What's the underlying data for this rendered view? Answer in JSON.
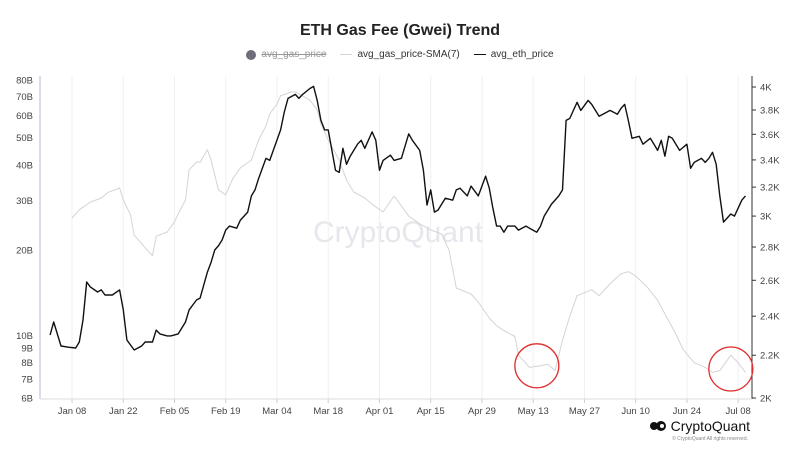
{
  "chart_data": {
    "type": "line",
    "title": "ETH Gas Fee (Gwei) Trend",
    "legend": [
      {
        "name": "avg_gas_price",
        "hidden": true,
        "color": "#6e6e7a"
      },
      {
        "name": "avg_gas_price-SMA(7)",
        "color": "#d4d4d8"
      },
      {
        "name": "avg_eth_price",
        "color": "#111111"
      }
    ],
    "legend_position": "top-center",
    "x_start_date": "2024-01-01",
    "x_unit": "days since start",
    "x_range": [
      0,
      192
    ],
    "x_ticks": [
      {
        "day": 7,
        "label": "Jan 08"
      },
      {
        "day": 21,
        "label": "Jan 22"
      },
      {
        "day": 35,
        "label": "Feb 05"
      },
      {
        "day": 49,
        "label": "Feb 19"
      },
      {
        "day": 63,
        "label": "Mar 04"
      },
      {
        "day": 77,
        "label": "Mar 18"
      },
      {
        "day": 91,
        "label": "Apr 01"
      },
      {
        "day": 105,
        "label": "Apr 15"
      },
      {
        "day": 119,
        "label": "Apr 29"
      },
      {
        "day": 133,
        "label": "May 13"
      },
      {
        "day": 147,
        "label": "May 27"
      },
      {
        "day": 161,
        "label": "Jun 10"
      },
      {
        "day": 175,
        "label": "Jun 24"
      },
      {
        "day": 189,
        "label": "Jul 08"
      }
    ],
    "left_axis": {
      "scale": "log",
      "range": [
        6,
        80
      ],
      "unit": "B",
      "ticks": [
        {
          "v": 80,
          "label": "80B"
        },
        {
          "v": 70,
          "label": "70B"
        },
        {
          "v": 60,
          "label": "60B"
        },
        {
          "v": 50,
          "label": "50B"
        },
        {
          "v": 40,
          "label": "40B"
        },
        {
          "v": 30,
          "label": "30B"
        },
        {
          "v": 20,
          "label": "20B"
        },
        {
          "v": 10,
          "label": "10B"
        },
        {
          "v": 9,
          "label": "9B"
        },
        {
          "v": 8,
          "label": "8B"
        },
        {
          "v": 7,
          "label": "7B"
        },
        {
          "v": 6,
          "label": "6B"
        }
      ]
    },
    "right_axis": {
      "scale": "log",
      "range": [
        2000,
        4000
      ],
      "ticks": [
        {
          "v": 4000,
          "label": "4K"
        },
        {
          "v": 3800,
          "label": "3.8K"
        },
        {
          "v": 3600,
          "label": "3.6K"
        },
        {
          "v": 3400,
          "label": "3.4K"
        },
        {
          "v": 3200,
          "label": "3.2K"
        },
        {
          "v": 3000,
          "label": "3K"
        },
        {
          "v": 2800,
          "label": "2.8K"
        },
        {
          "v": 2600,
          "label": "2.6K"
        },
        {
          "v": 2400,
          "label": "2.4K"
        },
        {
          "v": 2200,
          "label": "2.2K"
        },
        {
          "v": 2000,
          "label": "2K"
        }
      ]
    },
    "series": [
      {
        "name": "avg_gas_price-SMA(7)",
        "axis": "left",
        "points": [
          [
            7,
            26.0
          ],
          [
            9,
            27.8
          ],
          [
            12,
            29.6
          ],
          [
            15,
            30.6
          ],
          [
            17,
            32.1
          ],
          [
            20,
            33.2
          ],
          [
            21,
            30.1
          ],
          [
            23,
            26.6
          ],
          [
            24,
            22.6
          ],
          [
            27,
            20.4
          ],
          [
            29,
            19.1
          ],
          [
            30,
            22.4
          ],
          [
            33,
            23.2
          ],
          [
            35,
            25.2
          ],
          [
            36,
            26.9
          ],
          [
            38,
            30.1
          ],
          [
            39,
            38.5
          ],
          [
            41,
            41.0
          ],
          [
            42,
            41.0
          ],
          [
            44,
            45.3
          ],
          [
            45,
            41.7
          ],
          [
            47,
            32.7
          ],
          [
            49,
            31.4
          ],
          [
            51,
            36.0
          ],
          [
            53,
            39.1
          ],
          [
            56,
            41.7
          ],
          [
            58,
            49.1
          ],
          [
            60,
            55.0
          ],
          [
            61,
            60.6
          ],
          [
            63,
            65.8
          ],
          [
            64,
            70.3
          ],
          [
            67,
            72.6
          ],
          [
            68,
            72.6
          ],
          [
            70,
            70.3
          ],
          [
            72,
            67.9
          ],
          [
            74,
            62.7
          ],
          [
            75,
            56.0
          ],
          [
            77,
            49.1
          ],
          [
            80,
            41.7
          ],
          [
            82,
            35.4
          ],
          [
            84,
            32.1
          ],
          [
            87,
            30.6
          ],
          [
            89,
            29.1
          ],
          [
            92,
            27.3
          ],
          [
            95,
            31.1
          ],
          [
            97,
            28.7
          ],
          [
            99,
            26.4
          ],
          [
            102,
            24.8
          ],
          [
            105,
            23.6
          ],
          [
            108,
            22.8
          ],
          [
            110,
            20.0
          ],
          [
            112,
            14.7
          ],
          [
            116,
            14.0
          ],
          [
            118,
            13.1
          ],
          [
            121,
            11.5
          ],
          [
            123,
            10.8
          ],
          [
            125,
            10.4
          ],
          [
            128,
            9.9
          ],
          [
            129,
            8.5
          ],
          [
            132,
            7.7
          ],
          [
            135,
            7.8
          ],
          [
            137,
            7.9
          ],
          [
            139,
            7.5
          ],
          [
            141,
            9.6
          ],
          [
            143,
            11.7
          ],
          [
            145,
            13.8
          ],
          [
            149,
            14.5
          ],
          [
            151,
            13.8
          ],
          [
            154,
            15.2
          ],
          [
            157,
            16.5
          ],
          [
            159,
            16.8
          ],
          [
            161,
            16.2
          ],
          [
            164,
            14.9
          ],
          [
            167,
            13.3
          ],
          [
            169,
            11.9
          ],
          [
            172,
            10.1
          ],
          [
            174,
            8.9
          ],
          [
            177,
            8.0
          ],
          [
            180,
            7.7
          ],
          [
            182,
            7.4
          ],
          [
            184,
            7.5
          ],
          [
            187,
            8.5
          ],
          [
            189,
            8.0
          ],
          [
            191,
            7.4
          ]
        ]
      },
      {
        "name": "avg_eth_price",
        "axis": "right",
        "points": [
          [
            1,
            2302
          ],
          [
            2,
            2369
          ],
          [
            4,
            2246
          ],
          [
            6,
            2240
          ],
          [
            8,
            2236
          ],
          [
            9,
            2266
          ],
          [
            10,
            2380
          ],
          [
            11,
            2590
          ],
          [
            12,
            2562
          ],
          [
            14,
            2533
          ],
          [
            15,
            2545
          ],
          [
            16,
            2516
          ],
          [
            18,
            2516
          ],
          [
            20,
            2545
          ],
          [
            21,
            2434
          ],
          [
            22,
            2276
          ],
          [
            24,
            2226
          ],
          [
            26,
            2246
          ],
          [
            27,
            2266
          ],
          [
            29,
            2266
          ],
          [
            30,
            2327
          ],
          [
            31,
            2307
          ],
          [
            33,
            2297
          ],
          [
            34,
            2297
          ],
          [
            36,
            2307
          ],
          [
            38,
            2369
          ],
          [
            39,
            2434
          ],
          [
            41,
            2488
          ],
          [
            42,
            2499
          ],
          [
            44,
            2648
          ],
          [
            45,
            2707
          ],
          [
            46,
            2782
          ],
          [
            47,
            2807
          ],
          [
            48,
            2844
          ],
          [
            49,
            2908
          ],
          [
            50,
            2934
          ],
          [
            52,
            2920
          ],
          [
            53,
            2973
          ],
          [
            55,
            3027
          ],
          [
            56,
            3138
          ],
          [
            57,
            3180
          ],
          [
            58,
            3264
          ],
          [
            60,
            3412
          ],
          [
            61,
            3396
          ],
          [
            62,
            3473
          ],
          [
            64,
            3635
          ],
          [
            65,
            3783
          ],
          [
            66,
            3900
          ],
          [
            68,
            3935
          ],
          [
            69,
            3900
          ],
          [
            70,
            3935
          ],
          [
            72,
            3987
          ],
          [
            73,
            4005
          ],
          [
            74,
            3882
          ],
          [
            75,
            3713
          ],
          [
            76,
            3635
          ],
          [
            77,
            3635
          ],
          [
            79,
            3322
          ],
          [
            80,
            3307
          ],
          [
            81,
            3489
          ],
          [
            82,
            3367
          ],
          [
            83,
            3428
          ],
          [
            85,
            3521
          ],
          [
            86,
            3552
          ],
          [
            87,
            3489
          ],
          [
            89,
            3619
          ],
          [
            90,
            3552
          ],
          [
            91,
            3322
          ],
          [
            92,
            3396
          ],
          [
            94,
            3436
          ],
          [
            95,
            3396
          ],
          [
            97,
            3412
          ],
          [
            99,
            3603
          ],
          [
            100,
            3552
          ],
          [
            102,
            3473
          ],
          [
            103,
            3322
          ],
          [
            104,
            3074
          ],
          [
            105,
            3180
          ],
          [
            106,
            3027
          ],
          [
            107,
            3040
          ],
          [
            109,
            3122
          ],
          [
            111,
            3108
          ],
          [
            112,
            3180
          ],
          [
            113,
            3192
          ],
          [
            115,
            3138
          ],
          [
            116,
            3207
          ],
          [
            118,
            3138
          ],
          [
            120,
            3279
          ],
          [
            121,
            3192
          ],
          [
            122,
            3053
          ],
          [
            123,
            2934
          ],
          [
            124,
            2934
          ],
          [
            125,
            2894
          ],
          [
            126,
            2934
          ],
          [
            128,
            2934
          ],
          [
            129,
            2908
          ],
          [
            131,
            2934
          ],
          [
            132,
            2920
          ],
          [
            134,
            2894
          ],
          [
            135,
            2934
          ],
          [
            136,
            3000
          ],
          [
            138,
            3081
          ],
          [
            140,
            3138
          ],
          [
            141,
            3180
          ],
          [
            142,
            3713
          ],
          [
            143,
            3730
          ],
          [
            144,
            3797
          ],
          [
            145,
            3866
          ],
          [
            146,
            3797
          ],
          [
            148,
            3882
          ],
          [
            149,
            3848
          ],
          [
            151,
            3747
          ],
          [
            153,
            3780
          ],
          [
            154,
            3797
          ],
          [
            156,
            3764
          ],
          [
            157,
            3814
          ],
          [
            158,
            3848
          ],
          [
            159,
            3713
          ],
          [
            160,
            3568
          ],
          [
            162,
            3584
          ],
          [
            163,
            3521
          ],
          [
            165,
            3568
          ],
          [
            166,
            3521
          ],
          [
            167,
            3473
          ],
          [
            168,
            3552
          ],
          [
            169,
            3428
          ],
          [
            170,
            3584
          ],
          [
            171,
            3568
          ],
          [
            172,
            3521
          ],
          [
            173,
            3473
          ],
          [
            175,
            3521
          ],
          [
            176,
            3337
          ],
          [
            177,
            3381
          ],
          [
            179,
            3412
          ],
          [
            180,
            3381
          ],
          [
            181,
            3412
          ],
          [
            182,
            3458
          ],
          [
            183,
            3367
          ],
          [
            184,
            3138
          ],
          [
            185,
            2960
          ],
          [
            187,
            3014
          ],
          [
            188,
            3000
          ],
          [
            190,
            3108
          ],
          [
            191,
            3138
          ]
        ]
      }
    ],
    "annotations": [
      {
        "type": "circle",
        "color": "#e03030",
        "around_day": 134,
        "left_value": 7.8
      },
      {
        "type": "circle",
        "color": "#e03030",
        "around_day": 187,
        "left_value": 7.6
      }
    ]
  },
  "watermark": "CryptoQuant",
  "brand": {
    "name": "CryptoQuant",
    "copyright": "© CryptoQuant All rights reserved."
  }
}
